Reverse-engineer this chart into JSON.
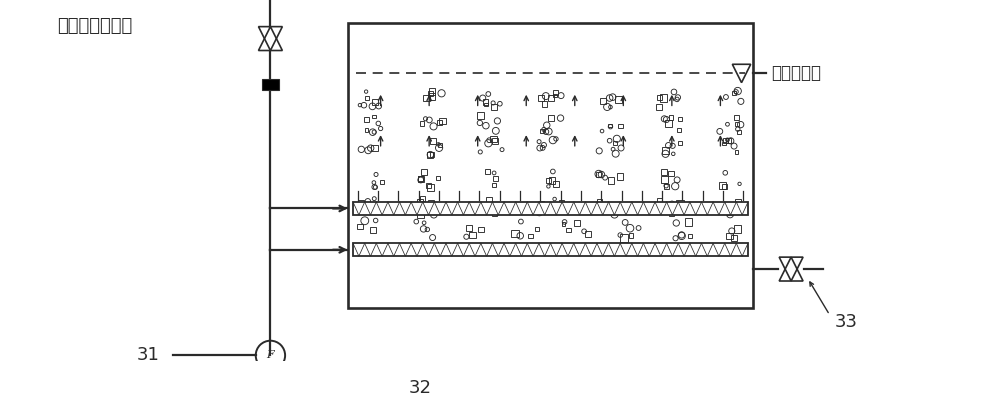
{
  "bg": "#ffffff",
  "lc": "#2a2a2a",
  "label_inlet": "电解后溶液进液",
  "label_outlet": "脱氯后出液",
  "lbl_31": "31",
  "lbl_32": "32",
  "lbl_33": "33",
  "figw": 10.0,
  "figh": 3.93
}
